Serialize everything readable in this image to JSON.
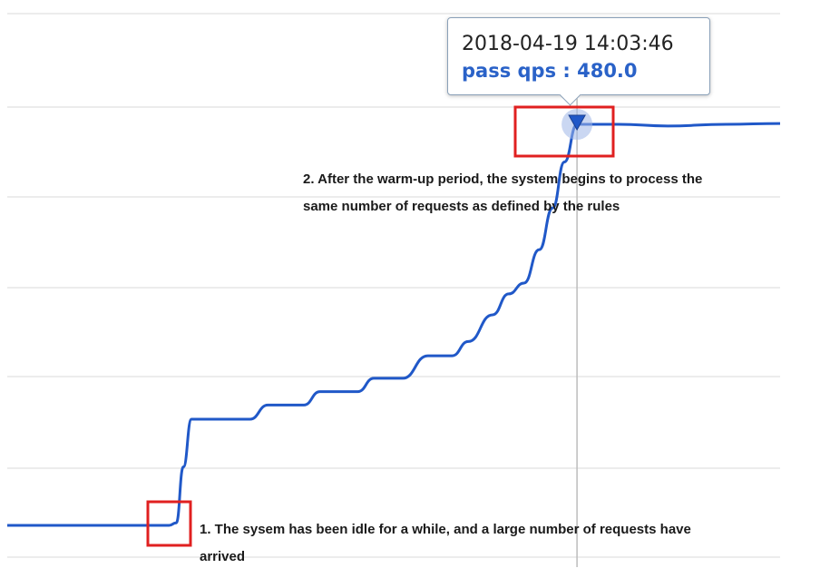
{
  "tooltip": {
    "time": "2018-04-19 14:03:46",
    "value_text": "pass qps : 480.0"
  },
  "annotations": {
    "warmup_line1": "2. After the warm-up period, the system begins to process the",
    "warmup_line2": "same number of requests as defined by the rules",
    "idle_line1": "1. The sysem has been idle for a while, and a large number of requests have",
    "idle_line2": "arrived"
  },
  "colors": {
    "line": "#2058c8",
    "highlight_box": "#e02020",
    "grid": "#d8d8d8",
    "crosshair": "#bdbdbd",
    "tooltip_value": "#2a62c8"
  },
  "chart_data": {
    "type": "line",
    "title": "",
    "xlabel": "",
    "ylabel": "",
    "ylim": [
      0,
      500
    ],
    "grid": true,
    "legend": "none",
    "series": [
      {
        "values": [
          {
            "x": 0,
            "y": 0
          },
          {
            "x": 180,
            "y": 0
          },
          {
            "x": 188,
            "y": 3
          },
          {
            "x": 196,
            "y": 70
          },
          {
            "x": 205,
            "y": 127
          },
          {
            "x": 270,
            "y": 127
          },
          {
            "x": 290,
            "y": 144
          },
          {
            "x": 330,
            "y": 144
          },
          {
            "x": 348,
            "y": 160
          },
          {
            "x": 390,
            "y": 160
          },
          {
            "x": 408,
            "y": 176
          },
          {
            "x": 440,
            "y": 176
          },
          {
            "x": 468,
            "y": 203
          },
          {
            "x": 495,
            "y": 203
          },
          {
            "x": 513,
            "y": 220
          },
          {
            "x": 540,
            "y": 252
          },
          {
            "x": 558,
            "y": 277
          },
          {
            "x": 575,
            "y": 290
          },
          {
            "x": 592,
            "y": 330
          },
          {
            "x": 607,
            "y": 380
          },
          {
            "x": 620,
            "y": 435
          },
          {
            "x": 634,
            "y": 480
          },
          {
            "x": 680,
            "y": 480
          },
          {
            "x": 735,
            "y": 478
          },
          {
            "x": 800,
            "y": 480
          },
          {
            "x": 860,
            "y": 481
          }
        ]
      }
    ],
    "highlight": {
      "x": 634,
      "y": 480
    }
  }
}
